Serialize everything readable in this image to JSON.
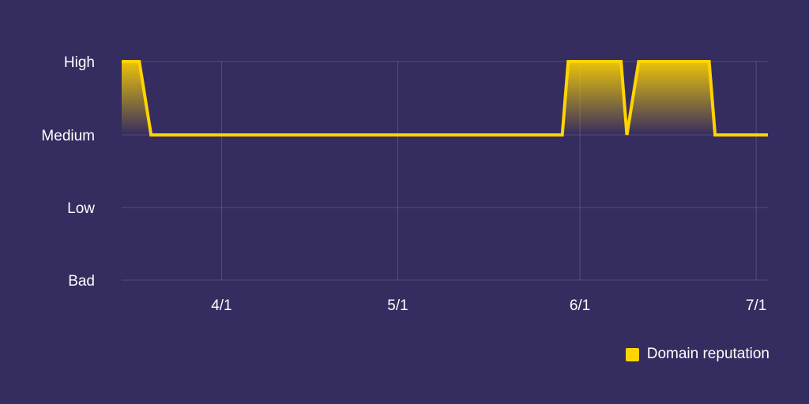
{
  "chart_data": {
    "type": "area",
    "y_categories": [
      "Bad",
      "Low",
      "Medium",
      "High"
    ],
    "x_ticks": [
      {
        "date": "2021-04-01",
        "label": "4/1"
      },
      {
        "date": "2021-05-01",
        "label": "5/1"
      },
      {
        "date": "2021-06-01",
        "label": "6/1"
      },
      {
        "date": "2021-07-01",
        "label": "7/1"
      }
    ],
    "xlim": [
      "2021-03-15",
      "2021-07-03"
    ],
    "series": [
      {
        "name": "Domain reputation",
        "color": "#ffd400",
        "points": [
          {
            "x": "2021-03-15",
            "y": "High"
          },
          {
            "x": "2021-03-18",
            "y": "High"
          },
          {
            "x": "2021-03-20",
            "y": "Medium"
          },
          {
            "x": "2021-05-29",
            "y": "Medium"
          },
          {
            "x": "2021-05-30",
            "y": "High"
          },
          {
            "x": "2021-06-08",
            "y": "High"
          },
          {
            "x": "2021-06-09",
            "y": "Medium"
          },
          {
            "x": "2021-06-11",
            "y": "High"
          },
          {
            "x": "2021-06-23",
            "y": "High"
          },
          {
            "x": "2021-06-24",
            "y": "Medium"
          },
          {
            "x": "2021-07-03",
            "y": "Medium"
          }
        ]
      }
    ],
    "grid": true,
    "legend_position": "bottom-right"
  }
}
